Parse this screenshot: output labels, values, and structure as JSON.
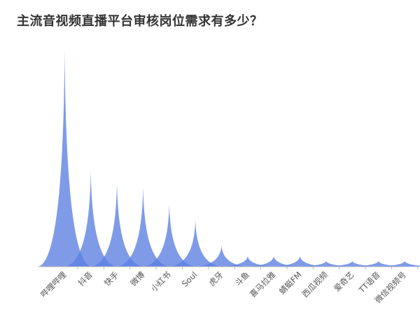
{
  "title": "主流音视频直播平台审核岗位需求有多少？",
  "colors": {
    "series": "#5b7fe2",
    "axis": "#bbbbbb",
    "label": "#555555"
  },
  "chart_data": {
    "type": "area",
    "title": "主流音视频直播平台审核岗位需求有多少？",
    "xlabel": "",
    "ylabel": "",
    "grid": false,
    "legend": "none",
    "categories": [
      "哔哩哔哩",
      "抖音",
      "快手",
      "微博",
      "小红书",
      "Soul",
      "虎牙",
      "斗鱼",
      "喜马拉雅",
      "蜻蜓FM",
      "西瓜视频",
      "爱奇艺",
      "TT语音",
      "微信视频号"
    ],
    "values": [
      310,
      137,
      120,
      113,
      89,
      66,
      30,
      15,
      15,
      15,
      8,
      8,
      8,
      8
    ],
    "ylim": [
      0,
      310
    ]
  }
}
